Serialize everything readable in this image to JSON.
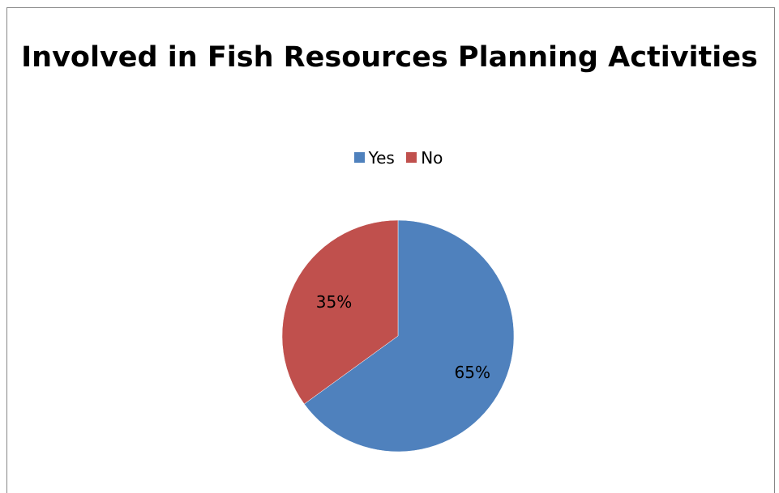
{
  "chart_data": {
    "type": "pie",
    "title": "Involved in Fish Resources Planning Activities",
    "categories": [
      "Yes",
      "No"
    ],
    "values": [
      65,
      35
    ],
    "data_labels": [
      "65%",
      "35%"
    ],
    "colors": [
      "#4F81BD",
      "#C0504D"
    ],
    "legend_position": "top",
    "start_angle_deg": 0,
    "direction": "clockwise"
  }
}
